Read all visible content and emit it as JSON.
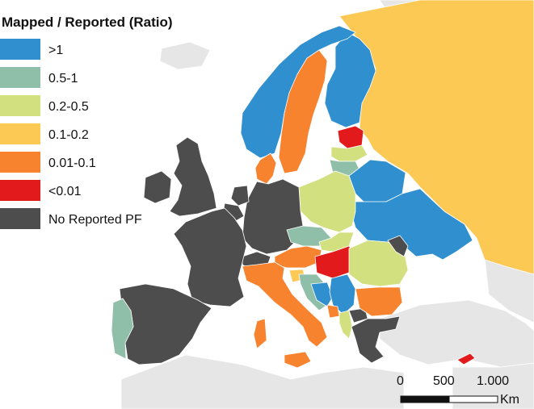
{
  "legend": {
    "title": "Mapped / Reported (Ratio)",
    "items": [
      {
        "label": ">1",
        "color": "#2f8fcf"
      },
      {
        "label": "0.5-1",
        "color": "#8fbfa8"
      },
      {
        "label": "0.2-0.5",
        "color": "#d3e07f"
      },
      {
        "label": "0.1-0.2",
        "color": "#fcc955"
      },
      {
        "label": "0.01-0.1",
        "color": "#f7832f"
      },
      {
        "label": "<0.01",
        "color": "#e31a1c"
      },
      {
        "label": "No Reported PF",
        "color": "#4d4d4d"
      }
    ]
  },
  "scale_bar": {
    "tick_labels": [
      "0",
      "500",
      "1.000"
    ],
    "unit": "Km"
  },
  "colors": {
    "background_land": "#e6e6e6",
    "sea": "#ffffff"
  }
}
